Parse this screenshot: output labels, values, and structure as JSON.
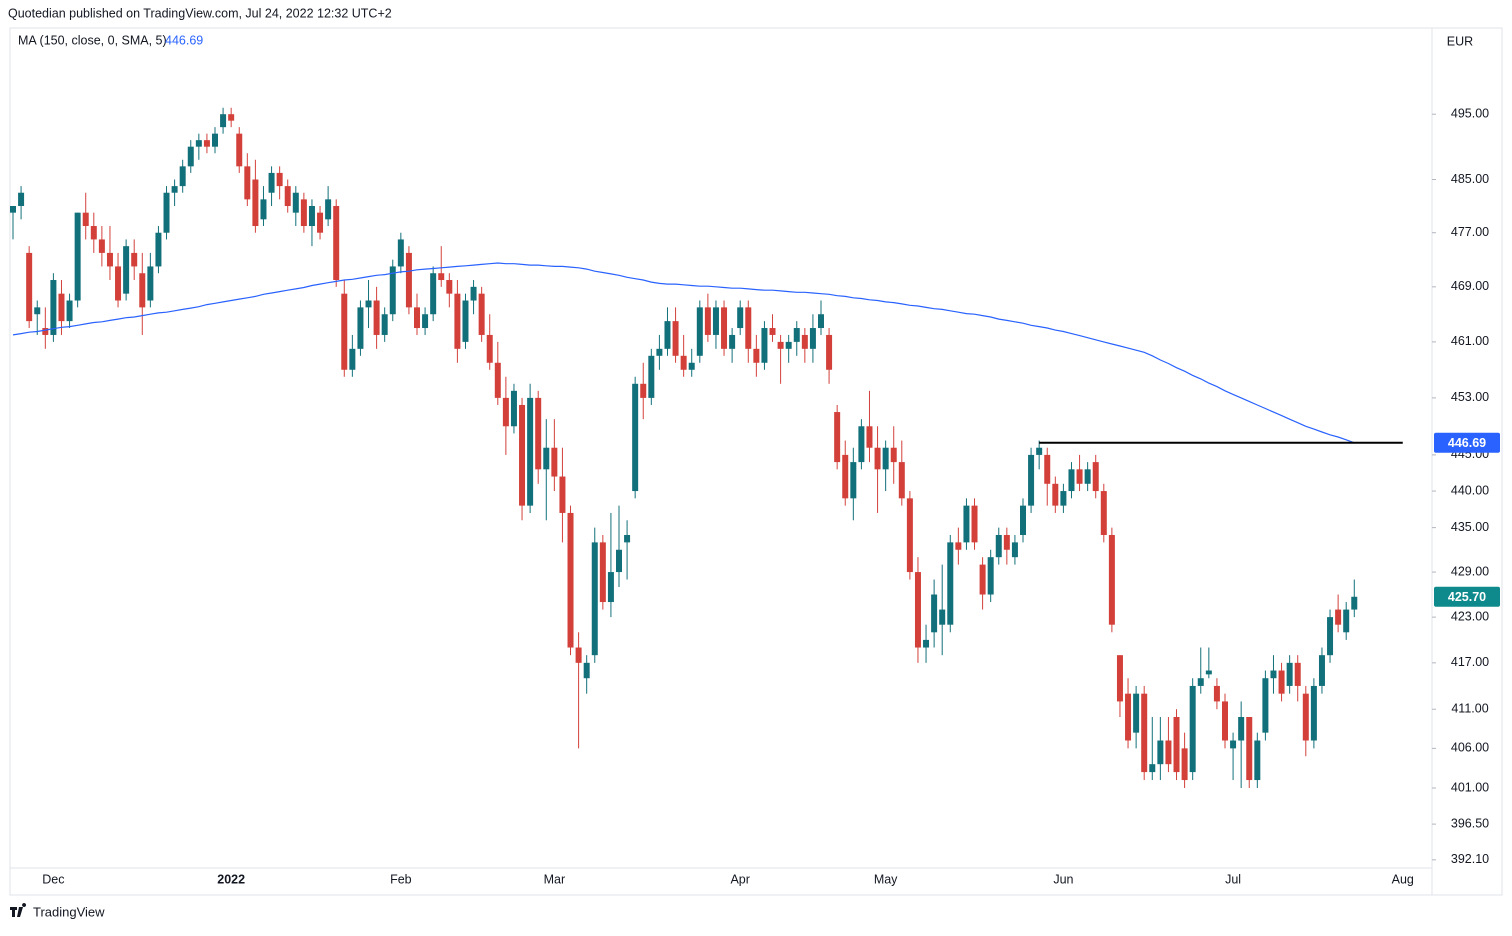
{
  "chart_data": {
    "type": "candlestick",
    "header": "Quotedian published on TradingView.com, Jul 24, 2022 12:32 UTC+2",
    "currency": "EUR",
    "footer": "TradingView",
    "up_color": "#12707a",
    "down_color": "#d3403a",
    "log_scale": true,
    "grid": false,
    "ylim": [
      391.1,
      508.2
    ],
    "yticks": [
      {
        "value": 392.1,
        "label": "392.10"
      },
      {
        "value": 396.5,
        "label": "396.50"
      },
      {
        "value": 401,
        "label": "401.00"
      },
      {
        "value": 406,
        "label": "406.00"
      },
      {
        "value": 411,
        "label": "411.00"
      },
      {
        "value": 417,
        "label": "417.00"
      },
      {
        "value": 423,
        "label": "423.00"
      },
      {
        "value": 429,
        "label": "429.00"
      },
      {
        "value": 435,
        "label": "435.00"
      },
      {
        "value": 440,
        "label": "440.00"
      },
      {
        "value": 445,
        "label": "445.00"
      },
      {
        "value": 453,
        "label": "453.00"
      },
      {
        "value": 461,
        "label": "461.00"
      },
      {
        "value": 469,
        "label": "469.00"
      },
      {
        "value": 477,
        "label": "477.00"
      },
      {
        "value": 485,
        "label": "485.00"
      },
      {
        "value": 495,
        "label": "495.00"
      }
    ],
    "categories": [
      null,
      null,
      null,
      null,
      null,
      "Dec",
      null,
      null,
      null,
      null,
      null,
      null,
      null,
      null,
      null,
      null,
      null,
      null,
      null,
      null,
      null,
      null,
      null,
      null,
      null,
      null,
      null,
      "2022",
      null,
      null,
      null,
      null,
      null,
      null,
      null,
      null,
      null,
      null,
      null,
      null,
      null,
      null,
      null,
      null,
      null,
      null,
      null,
      null,
      "Feb",
      null,
      null,
      null,
      null,
      null,
      null,
      null,
      null,
      null,
      null,
      null,
      null,
      null,
      null,
      null,
      null,
      null,
      null,
      "Mar",
      null,
      null,
      null,
      null,
      null,
      null,
      null,
      null,
      null,
      null,
      null,
      null,
      null,
      null,
      null,
      null,
      null,
      null,
      null,
      null,
      null,
      null,
      "Apr",
      null,
      null,
      null,
      null,
      null,
      null,
      null,
      null,
      null,
      null,
      null,
      null,
      null,
      null,
      null,
      null,
      null,
      "May",
      null,
      null,
      null,
      null,
      null,
      null,
      null,
      null,
      null,
      null,
      null,
      null,
      null,
      null,
      null,
      null,
      null,
      null,
      null,
      null,
      null,
      "Jun",
      null,
      null,
      null,
      null,
      null,
      null,
      null,
      null,
      null,
      null,
      null,
      null,
      null,
      null,
      null,
      null,
      null,
      null,
      null,
      null,
      "Jul",
      null,
      null,
      null,
      null,
      null,
      null,
      null,
      null,
      null,
      null,
      null,
      null,
      null,
      null,
      null,
      null,
      null,
      null,
      null,
      null,
      "Aug"
    ],
    "open": [
      480,
      481,
      474,
      465,
      463,
      462,
      468,
      464,
      467,
      480,
      478,
      476,
      474,
      472,
      468,
      474,
      471,
      467,
      472,
      477,
      483,
      484,
      487,
      490,
      491,
      490,
      493,
      495,
      492,
      487,
      485,
      479,
      483,
      486,
      484,
      480,
      482,
      478,
      480,
      479,
      481,
      468,
      457,
      460,
      466,
      467,
      462,
      465,
      472,
      474,
      466,
      463,
      465,
      471,
      470,
      468,
      461,
      467,
      468,
      462,
      458,
      453,
      449,
      452,
      438,
      453,
      443,
      446,
      442,
      437,
      419,
      415,
      418,
      433,
      425,
      429,
      433,
      440,
      455,
      453,
      459,
      460,
      464,
      459,
      457,
      459,
      466,
      462,
      466,
      460,
      463,
      466,
      460,
      458,
      463,
      461,
      460,
      461,
      462,
      460,
      463,
      462,
      451,
      445,
      439,
      444,
      449,
      446,
      443,
      446,
      444,
      439,
      429,
      419,
      421,
      422,
      422,
      433,
      433,
      438,
      430,
      426,
      431,
      434,
      431,
      434,
      438,
      445,
      445,
      441,
      438,
      440,
      443,
      441,
      444,
      440,
      434,
      418,
      413,
      408,
      413,
      403,
      404,
      407,
      410,
      406,
      403,
      414,
      415.5,
      414,
      412,
      406,
      407,
      410,
      402,
      408,
      415,
      416,
      414,
      417,
      413,
      407,
      414,
      418,
      424,
      421,
      424,
      null,
      null,
      null,
      null,
      null,
      null
    ],
    "high": [
      481,
      484,
      475,
      467,
      466,
      471,
      470,
      468,
      480,
      483,
      480,
      478,
      478,
      474,
      476,
      476,
      474,
      474,
      478,
      484,
      485,
      488,
      491,
      492,
      492,
      493,
      496,
      496,
      493,
      489,
      488,
      484,
      487,
      487,
      485,
      484,
      483,
      482,
      481,
      484,
      482,
      470,
      462,
      467,
      470,
      469,
      466,
      473,
      477,
      475,
      468,
      466,
      472,
      475,
      471,
      470,
      468,
      470,
      469,
      465,
      461,
      456,
      455,
      453,
      455,
      454,
      450,
      450,
      446,
      438,
      421,
      418,
      435,
      434,
      437,
      438,
      436,
      456,
      458,
      460,
      462,
      466,
      466,
      462,
      460,
      467,
      468,
      467,
      467,
      463,
      467,
      467,
      462,
      464,
      465,
      462,
      462,
      464,
      463,
      465,
      467,
      463,
      452,
      447,
      446,
      450,
      454,
      449,
      447,
      449,
      447,
      440,
      431,
      422,
      428,
      430,
      434,
      435,
      439,
      439,
      431,
      432,
      435,
      435,
      434,
      439,
      446,
      447,
      446,
      442,
      441,
      444,
      445,
      444,
      445,
      441,
      435,
      418,
      415,
      414,
      414,
      410,
      410,
      410,
      411,
      408,
      415,
      419,
      419,
      415,
      413,
      408,
      412,
      410,
      408,
      416,
      418,
      417,
      418,
      418,
      414,
      415,
      419,
      424,
      426,
      425,
      428,
      null,
      null,
      null,
      null,
      null,
      null
    ],
    "low": [
      476,
      479,
      463,
      462,
      460,
      461,
      462,
      463,
      466,
      476,
      474,
      472,
      470,
      466,
      467,
      470,
      462,
      466,
      471,
      476,
      481,
      483,
      486,
      488,
      489,
      489,
      492,
      493,
      486,
      481,
      477,
      478,
      481,
      482,
      480,
      478,
      477,
      475,
      476,
      478,
      469,
      456,
      456,
      459,
      463,
      460,
      461,
      464,
      471,
      465,
      462,
      462,
      464,
      469,
      466,
      458,
      460,
      465,
      461,
      457,
      452,
      445,
      448,
      436,
      437,
      441,
      436,
      440,
      433,
      418,
      406,
      413,
      417,
      424,
      423,
      427,
      428,
      439,
      450,
      452,
      457,
      459,
      458,
      456,
      456,
      458,
      461,
      460,
      459,
      458,
      462,
      458,
      456,
      457,
      461,
      455,
      458,
      459,
      458,
      458,
      462,
      455,
      443,
      438,
      436,
      443,
      444,
      437,
      440,
      441,
      438,
      428,
      417,
      417,
      419,
      418,
      421,
      430,
      432,
      432,
      424,
      425,
      430,
      430,
      430,
      433,
      437,
      443,
      438,
      437,
      437,
      439,
      440,
      440,
      439,
      433,
      421,
      410,
      406,
      406,
      402,
      402,
      402,
      403,
      402,
      401,
      402,
      413,
      415,
      411,
      406,
      402,
      401,
      401,
      401,
      407,
      413,
      412,
      413,
      412,
      405,
      406,
      413,
      417,
      421,
      420,
      423,
      null,
      null,
      null,
      null,
      null,
      null
    ],
    "close": [
      481,
      483,
      464,
      466,
      462,
      470,
      464,
      467,
      480,
      478,
      476,
      474,
      472,
      467,
      475,
      472,
      466,
      472,
      477,
      483,
      484,
      487,
      490,
      491,
      490,
      492,
      495,
      494,
      487,
      482,
      478,
      482,
      486,
      484,
      481,
      483,
      478,
      481,
      477,
      482,
      470,
      457,
      460,
      466,
      467,
      462,
      465,
      472,
      476,
      466,
      463,
      465,
      471,
      470,
      468,
      460,
      467,
      469,
      462,
      458,
      453,
      449,
      454,
      438,
      453,
      443,
      446,
      442,
      437,
      419,
      417,
      417,
      433,
      425,
      429,
      432,
      434,
      455,
      453,
      459,
      460,
      464,
      459,
      457,
      458,
      466,
      462,
      466,
      460,
      462,
      466,
      460,
      458,
      463,
      462,
      460,
      461,
      463,
      460,
      463,
      465,
      457,
      444,
      439,
      444,
      449,
      446,
      443,
      446,
      444,
      439,
      429,
      419,
      420,
      426,
      424,
      433,
      432,
      438,
      433,
      426,
      431,
      434,
      432,
      433,
      438,
      445,
      446,
      441,
      438,
      440,
      443,
      441,
      443,
      440,
      434,
      422,
      412,
      407,
      413,
      403,
      404,
      407,
      404,
      403,
      402,
      414,
      415,
      416,
      412,
      407,
      407,
      410,
      402,
      407,
      415,
      416,
      413,
      417,
      414,
      407,
      414,
      418,
      423,
      422,
      424,
      425.7,
      null,
      null,
      null,
      null,
      null,
      null
    ],
    "last_close_label": "425.70",
    "last_close_color": "#0e8a8c",
    "series": [
      {
        "name": "MA (150, close, 0, SMA, 5)",
        "color": "#2962ff",
        "last_label": "446.69",
        "values": [
          462.0,
          462.2,
          462.4,
          462.5,
          462.7,
          462.9,
          463.1,
          463.2,
          463.4,
          463.6,
          463.8,
          463.9,
          464.1,
          464.3,
          464.5,
          464.6,
          464.8,
          465.0,
          465.2,
          465.3,
          465.5,
          465.7,
          465.9,
          466.1,
          466.4,
          466.6,
          466.8,
          467.0,
          467.2,
          467.4,
          467.6,
          467.9,
          468.1,
          468.3,
          468.5,
          468.7,
          468.9,
          469.2,
          469.4,
          469.6,
          469.8,
          470.0,
          470.1,
          470.3,
          470.5,
          470.7,
          470.8,
          471.0,
          471.2,
          471.3,
          471.5,
          471.6,
          471.7,
          471.8,
          471.9,
          472.0,
          472.1,
          472.2,
          472.3,
          472.4,
          472.5,
          472.4,
          472.4,
          472.3,
          472.2,
          472.2,
          472.1,
          472.0,
          472.0,
          471.9,
          471.8,
          471.6,
          471.3,
          471.1,
          470.9,
          470.7,
          470.4,
          470.2,
          470.0,
          469.7,
          469.5,
          469.4,
          469.4,
          469.3,
          469.2,
          469.1,
          469.1,
          469.0,
          468.9,
          468.8,
          468.8,
          468.7,
          468.6,
          468.5,
          468.5,
          468.4,
          468.3,
          468.2,
          468.2,
          468.1,
          468.0,
          467.9,
          467.7,
          467.6,
          467.4,
          467.3,
          467.1,
          467.0,
          466.8,
          466.7,
          466.5,
          466.3,
          466.2,
          466.0,
          465.8,
          465.7,
          465.5,
          465.3,
          465.1,
          465.0,
          464.8,
          464.6,
          464.3,
          464.1,
          463.9,
          463.7,
          463.4,
          463.2,
          463.0,
          462.7,
          462.5,
          462.2,
          461.9,
          461.6,
          461.3,
          461.0,
          460.7,
          460.4,
          460.1,
          459.8,
          459.5,
          459.0,
          458.4,
          457.9,
          457.3,
          456.8,
          456.2,
          455.7,
          455.1,
          454.6,
          454.0,
          453.5,
          453.0,
          452.5,
          452.0,
          451.5,
          451.0,
          450.5,
          450.0,
          449.5,
          449.0,
          448.6,
          448.2,
          447.8,
          447.5,
          447.1,
          446.69,
          null,
          null,
          null,
          null,
          null,
          null
        ]
      }
    ],
    "hline": {
      "value": 446.7,
      "from": 127,
      "to": 172,
      "color": "#000000"
    }
  }
}
